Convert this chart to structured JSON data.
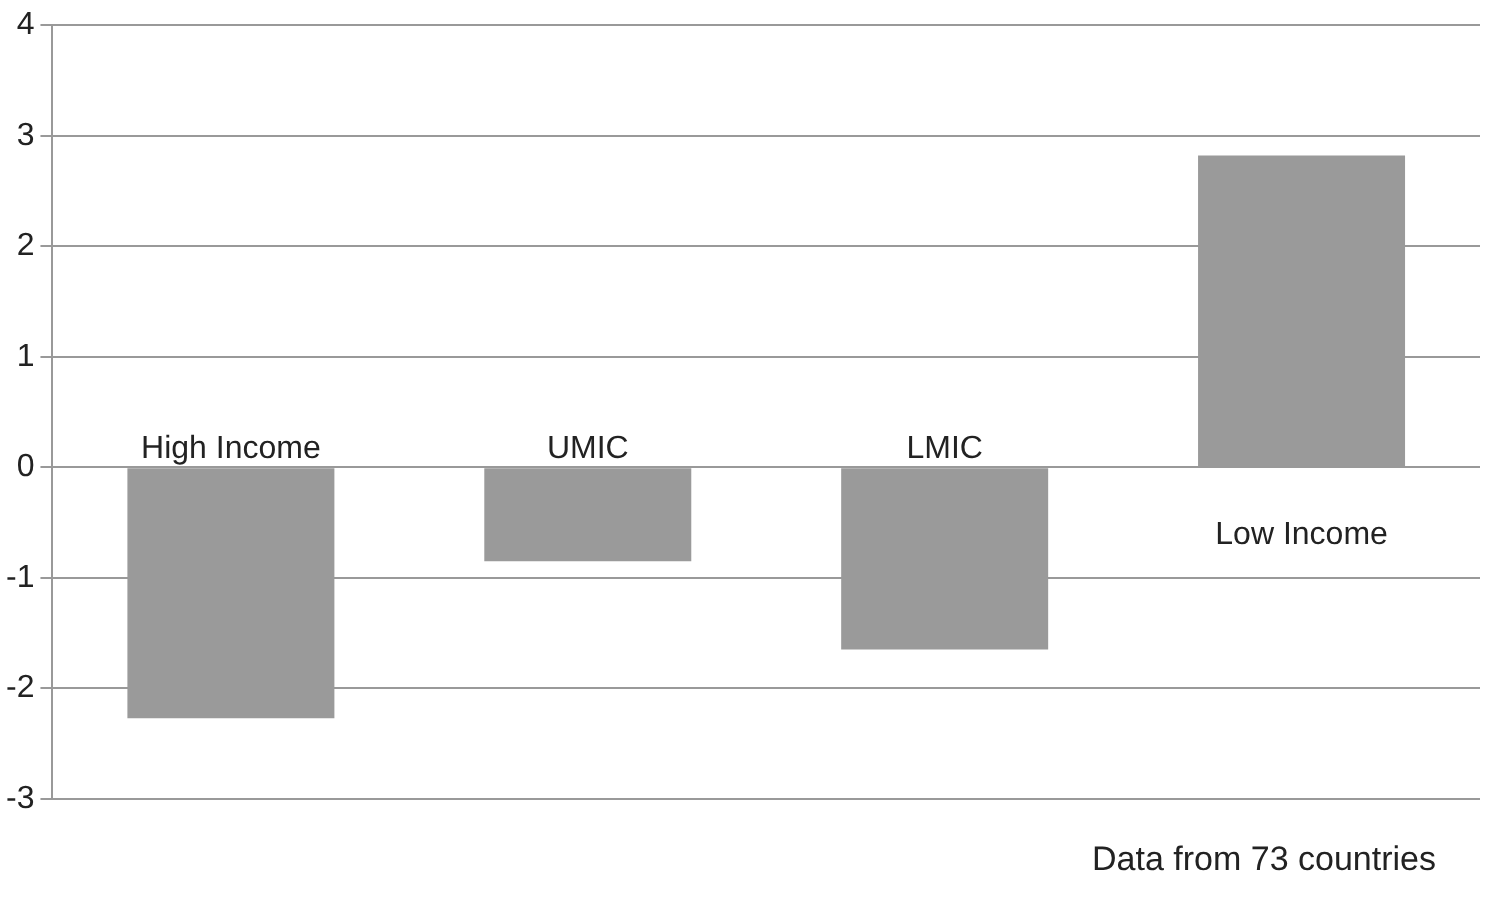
{
  "chart_data": {
    "type": "bar",
    "categories": [
      "High Income",
      "UMIC",
      "LMIC",
      "Low Income"
    ],
    "values": [
      -2.27,
      -0.85,
      -1.65,
      2.82
    ],
    "color": "#9a9a9a",
    "ylim": [
      -3,
      4
    ],
    "yticks": [
      -3,
      -2,
      -1,
      0,
      1,
      2,
      3,
      4
    ],
    "grid": "y",
    "annotations": [
      "Data from 73 countries"
    ]
  }
}
